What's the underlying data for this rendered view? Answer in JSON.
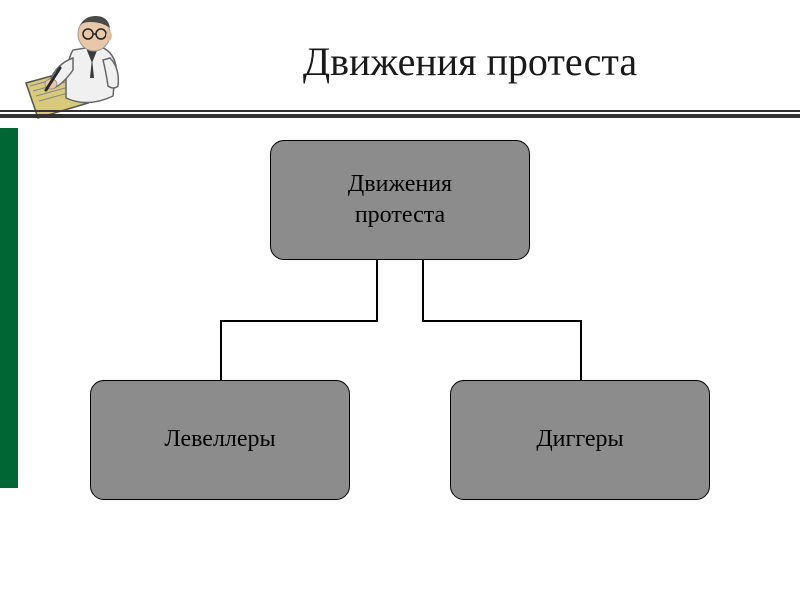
{
  "title": "Движения протеста",
  "diagram": {
    "type": "tree",
    "root": {
      "label": "Движения\nпротеста"
    },
    "children": [
      {
        "label": "Левеллеры"
      },
      {
        "label": "Диггеры"
      }
    ],
    "node_bg": "#8c8c8c",
    "node_border": "#000000",
    "node_radius": 14,
    "node_fontsize": 24,
    "connector_color": "#000000",
    "connector_width": 1.5
  },
  "title_fontsize": 40,
  "title_color": "#1a1a1a",
  "accent_color": "#006633",
  "divider_color": "#333333",
  "background_color": "#ffffff"
}
